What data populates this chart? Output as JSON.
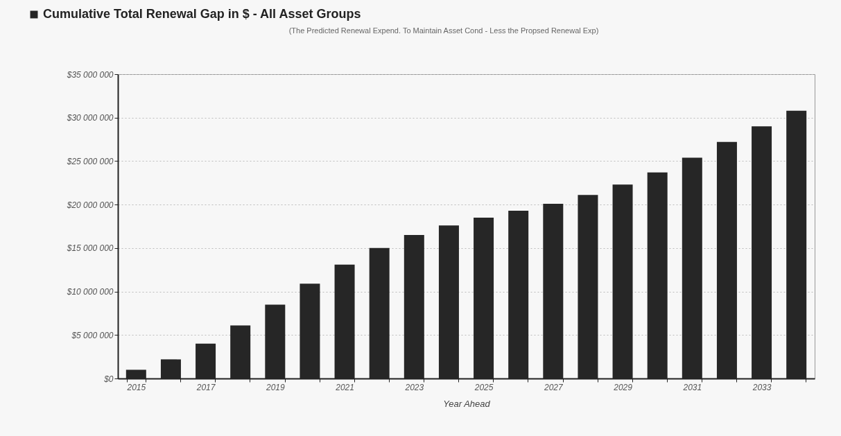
{
  "chart_data": {
    "type": "bar",
    "categories": [
      "2015",
      null,
      "2017",
      null,
      "2019",
      null,
      "2021",
      null,
      "2023",
      null,
      "2025",
      null,
      "2027",
      null,
      "2029",
      null,
      "2031",
      null,
      "2033",
      null
    ],
    "series": [
      {
        "name": "Cumulative Total Renewal Gap in $ -  All Asset Groups",
        "color": "#262626",
        "values": [
          1000000,
          2200000,
          4000000,
          6100000,
          8500000,
          10900000,
          13100000,
          15000000,
          16500000,
          17600000,
          18500000,
          19300000,
          20100000,
          21100000,
          22300000,
          23700000,
          25400000,
          27200000,
          29000000,
          30800000
        ]
      }
    ],
    "annotations": [
      "(The Predicted Renewal Expend. To Maintain Asset Cond  -  Less the Propsed Renewal Exp)"
    ],
    "xlabel": "Year Ahead",
    "ylim": [
      0,
      35000000
    ],
    "yticks": [
      {
        "value": 0,
        "label": "$0"
      },
      {
        "value": 5000000,
        "label": "$5 000 000"
      },
      {
        "value": 10000000,
        "label": "$10 000 000"
      },
      {
        "value": 15000000,
        "label": "$15 000 000"
      },
      {
        "value": 20000000,
        "label": "$20 000 000"
      },
      {
        "value": 25000000,
        "label": "$25 000 000"
      },
      {
        "value": 30000000,
        "label": "$30 000 000"
      },
      {
        "value": 35000000,
        "label": "$35 000 000"
      }
    ],
    "grid": "y",
    "legend": "top left"
  }
}
